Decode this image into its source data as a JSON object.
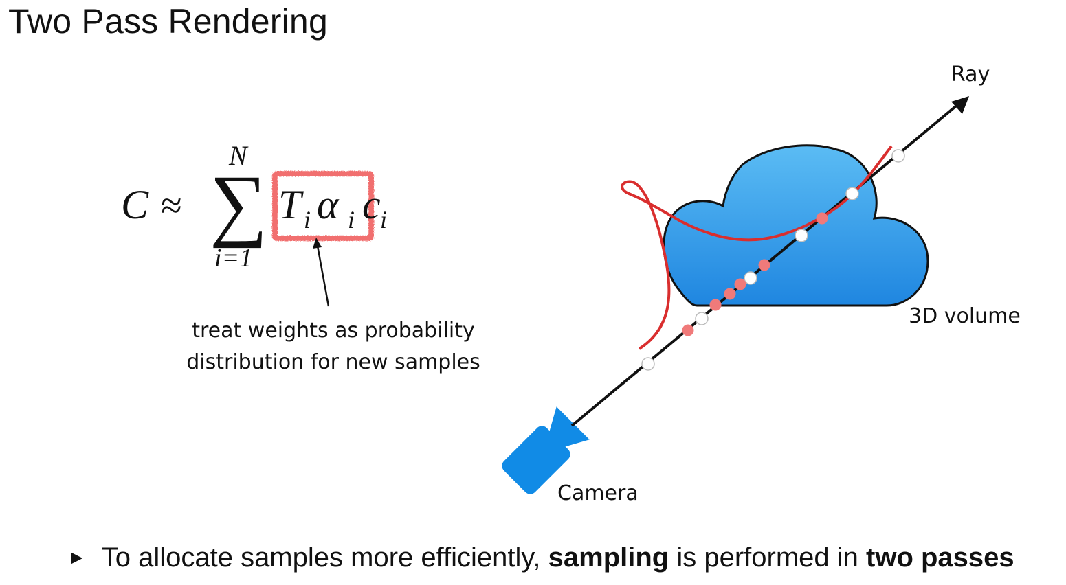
{
  "title": "Two Pass Rendering",
  "equation": {
    "lhs": "C",
    "approx": "≈",
    "sum_upper": "N",
    "sum_lower": "i=1",
    "terms": [
      "T",
      "i",
      "α",
      "i",
      "c",
      "i"
    ]
  },
  "annotation": {
    "line1": "treat weights as probability",
    "line2": "distribution for new samples"
  },
  "labels": {
    "ray": "Ray",
    "volume": "3D volume",
    "camera": "Camera"
  },
  "colors": {
    "cloud": "#2a95e6",
    "camera": "#118be6",
    "highlight": "#ee5555",
    "pdf_curve": "#d92e2e",
    "fine_sample": "#f07a7a",
    "coarse_sample": "#ffffff"
  },
  "bullet": {
    "marker": "►",
    "part1": "To allocate samples more efficiently, ",
    "bold1": "sampling",
    "part2": " is performed in ",
    "bold2": "two passes"
  }
}
